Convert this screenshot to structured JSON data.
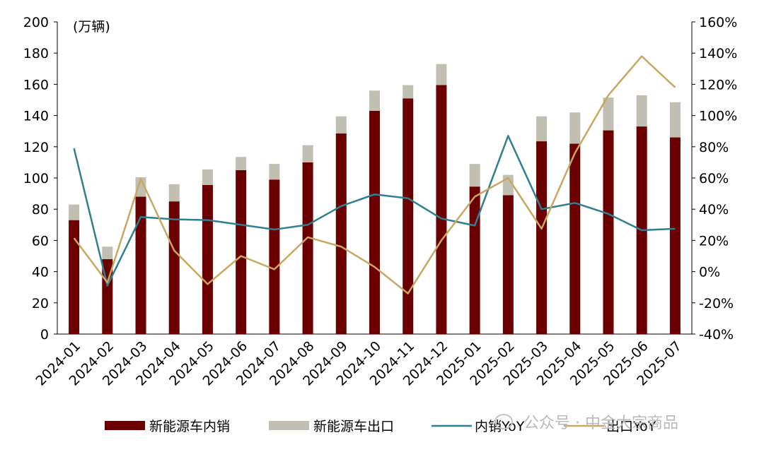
{
  "chart_data": {
    "type": "bar",
    "categories": [
      "2024-01",
      "2024-02",
      "2024-03",
      "2024-04",
      "2024-05",
      "2024-06",
      "2024-07",
      "2024-08",
      "2024-09",
      "2024-10",
      "2024-11",
      "2024-12",
      "2025-01",
      "2025-02",
      "2025-03",
      "2025-04",
      "2025-05",
      "2025-06",
      "2025-07"
    ],
    "unit_label": "(万辆)",
    "y_left": {
      "min": 0,
      "max": 200,
      "ticks": [
        0,
        20,
        40,
        60,
        80,
        100,
        120,
        140,
        160,
        180,
        200
      ]
    },
    "y_right": {
      "min": -40,
      "max": 160,
      "ticks": [
        "-40%",
        "-20%",
        "0%",
        "20%",
        "40%",
        "60%",
        "80%",
        "100%",
        "120%",
        "140%",
        "160%"
      ],
      "tick_values": [
        -40,
        -20,
        0,
        20,
        40,
        60,
        80,
        100,
        120,
        140,
        160
      ]
    },
    "stacked_bars": [
      {
        "name": "新能源车内销",
        "color": "#6b0000",
        "values": [
          73,
          48,
          88,
          85,
          95.5,
          105,
          99,
          110,
          128.5,
          143,
          151,
          159.5,
          94.5,
          89,
          123.5,
          122,
          130.5,
          133,
          126
        ]
      },
      {
        "name": "新能源车出口",
        "color": "#c1bfb1",
        "values": [
          10,
          8,
          12.5,
          11,
          10,
          8.5,
          10,
          11,
          11,
          13,
          8.5,
          13.5,
          14.5,
          13,
          16,
          20,
          21,
          20,
          22.5
        ]
      }
    ],
    "lines": [
      {
        "name": "内销YoY",
        "color": "#2f7f93",
        "axis": "right",
        "values": [
          79,
          -9,
          35,
          33.5,
          33,
          30,
          27,
          30,
          42,
          49.5,
          47,
          34,
          29.5,
          87,
          40,
          44,
          37,
          26.5,
          27.5
        ]
      },
      {
        "name": "出口YoY",
        "color": "#c9a662",
        "axis": "right",
        "values": [
          21.5,
          -7,
          59.5,
          13.5,
          -8,
          10,
          1.5,
          22,
          16,
          3,
          -14,
          20,
          48,
          60,
          27.5,
          76,
          113,
          138,
          118
        ]
      }
    ],
    "legend_position": "bottom",
    "grid": false
  },
  "watermark": {
    "icon": "wechat-icon",
    "text": "公众号 · 中金大宗商品"
  }
}
